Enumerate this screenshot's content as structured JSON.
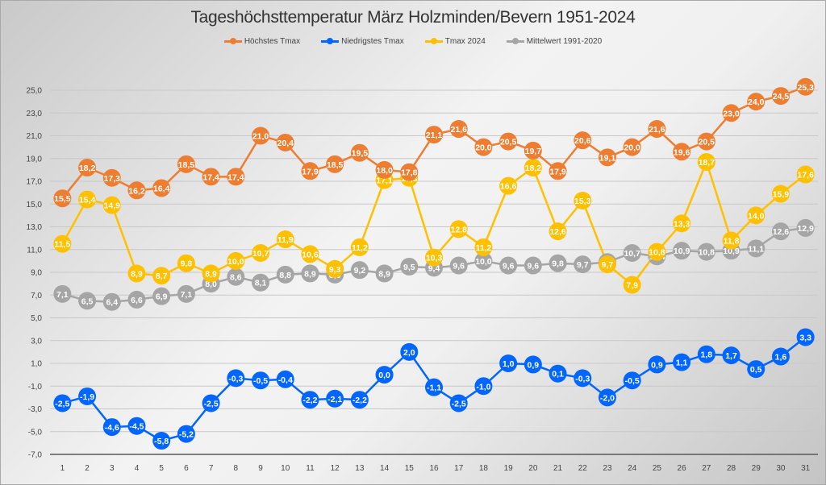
{
  "chart_data": {
    "type": "line",
    "title": "Tageshöchsttemperatur März Holzminden/Bevern 1951-2024",
    "xlabel": "",
    "ylabel": "",
    "x": [
      1,
      2,
      3,
      4,
      5,
      6,
      7,
      8,
      9,
      10,
      11,
      12,
      13,
      14,
      15,
      16,
      17,
      18,
      19,
      20,
      21,
      22,
      23,
      24,
      25,
      26,
      27,
      28,
      29,
      30,
      31
    ],
    "ylim": [
      -7.0,
      25.0
    ],
    "yticks": [
      "25,0",
      "23,0",
      "21,0",
      "19,0",
      "17,0",
      "15,0",
      "13,0",
      "11,0",
      "9,0",
      "7,0",
      "5,0",
      "3,0",
      "1,0",
      "-1,0",
      "-3,0",
      "-5,0",
      "-7,0"
    ],
    "ytick_values": [
      25,
      23,
      21,
      19,
      17,
      15,
      13,
      11,
      9,
      7,
      5,
      3,
      1,
      -1,
      -3,
      -5,
      -7
    ],
    "grid": true,
    "legend_position": "top",
    "series": [
      {
        "name": "Höchstes Tmax",
        "color": "#ed7d31",
        "values": [
          15.5,
          18.2,
          17.3,
          16.2,
          16.4,
          18.5,
          17.4,
          17.4,
          21.0,
          20.4,
          17.9,
          18.5,
          19.5,
          18.0,
          17.8,
          21.1,
          21.6,
          20.0,
          20.5,
          19.7,
          17.9,
          20.6,
          19.1,
          20.0,
          21.6,
          19.6,
          20.5,
          23.0,
          24.0,
          24.5,
          25.3
        ]
      },
      {
        "name": "Niedrigstes Tmax",
        "color": "#0066ff",
        "values": [
          -2.5,
          -1.9,
          -4.6,
          -4.5,
          -5.8,
          -5.2,
          -2.5,
          -0.3,
          -0.5,
          -0.4,
          -2.2,
          -2.1,
          -2.2,
          0.0,
          2.0,
          -1.1,
          -2.5,
          -1.0,
          1.0,
          0.9,
          0.1,
          -0.3,
          -2.0,
          -0.5,
          0.9,
          1.1,
          1.8,
          1.7,
          0.5,
          1.6,
          3.3
        ]
      },
      {
        "name": "Tmax 2024",
        "color": "#ffc000",
        "values": [
          11.5,
          15.4,
          14.9,
          8.9,
          8.7,
          9.8,
          8.9,
          10.0,
          10.7,
          11.9,
          10.6,
          9.3,
          11.2,
          17.1,
          17.3,
          10.3,
          12.8,
          11.2,
          16.6,
          18.2,
          12.6,
          15.3,
          9.7,
          7.9,
          10.8,
          13.3,
          18.7,
          11.8,
          14.0,
          15.9,
          17.6
        ]
      },
      {
        "name": "Mittelwert 1991-2020",
        "color": "#a5a5a5",
        "values": [
          7.1,
          6.5,
          6.4,
          6.6,
          6.9,
          7.1,
          8.0,
          8.6,
          8.1,
          8.8,
          8.9,
          8.8,
          9.2,
          8.9,
          9.5,
          9.4,
          9.6,
          10.0,
          9.6,
          9.6,
          9.8,
          9.7,
          9.9,
          10.7,
          10.4,
          10.9,
          10.8,
          10.9,
          11.1,
          12.6,
          12.9
        ]
      }
    ]
  }
}
